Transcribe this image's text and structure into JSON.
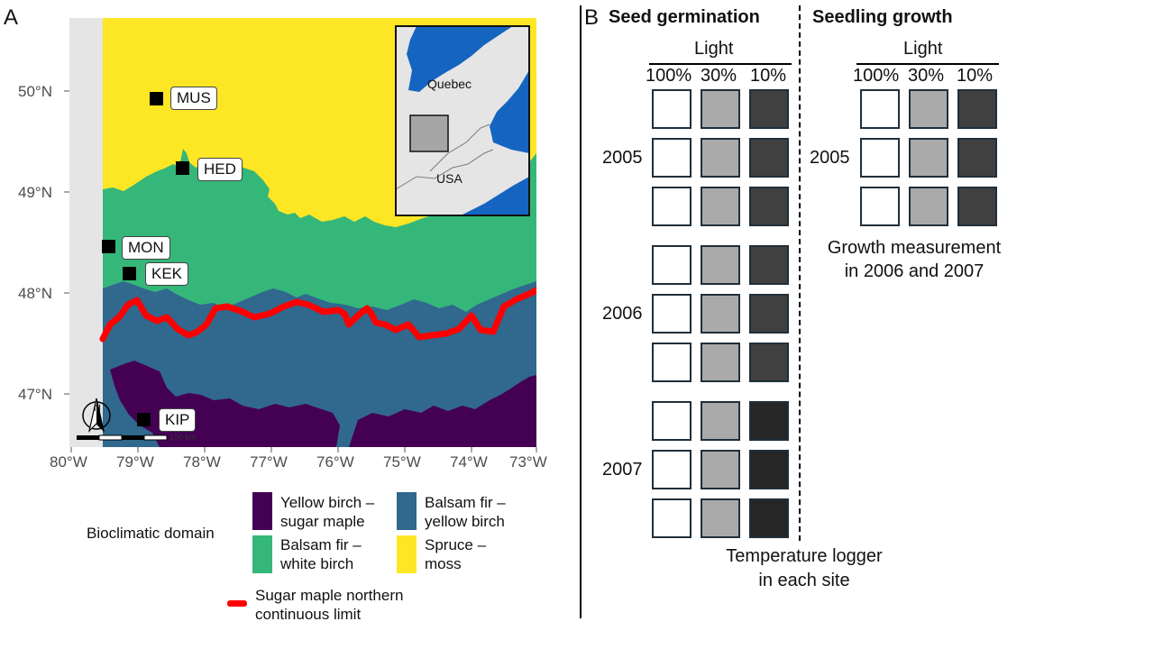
{
  "panel_a": {
    "letter": "A",
    "lat_labels": [
      "50°N",
      "49°N",
      "48°N",
      "47°N"
    ],
    "lon_labels": [
      "80°W",
      "79°W",
      "78°W",
      "77°W",
      "76°W",
      "75°W",
      "74°W",
      "73°W"
    ],
    "sites": [
      "MUS",
      "HED",
      "MON",
      "KEK",
      "KIP"
    ],
    "inset": {
      "region_label": "Quebec",
      "country_label": "USA"
    },
    "north_label": "N",
    "scale_label": "100 km",
    "legend": {
      "title": "Bioclimatic domain",
      "domains": [
        {
          "line1": "Yellow birch –",
          "line2": "sugar maple",
          "color": "#440154"
        },
        {
          "line1": "Balsam fir –",
          "line2": "yellow birch",
          "color": "#31688e"
        },
        {
          "line1": "Balsam fir –",
          "line2": "white birch",
          "color": "#35b779"
        },
        {
          "line1": "Spruce –",
          "line2": "moss",
          "color": "#fde725"
        }
      ],
      "limit_line1": "Sugar maple northern",
      "limit_line2": "continuous limit",
      "limit_color": "#ff0000"
    }
  },
  "panel_b": {
    "letter": "B",
    "germination_title": "Seed germination",
    "growth_title": "Seedling growth",
    "light_label": "Light",
    "light_levels": [
      "100%",
      "30%",
      "10%"
    ],
    "years": [
      "2005",
      "2006",
      "2007"
    ],
    "growth_year": "2005",
    "growth_note_line1": "Growth measurement",
    "growth_note_line2": "in 2006 and 2007",
    "logger_line1": "Temperature logger",
    "logger_line2": "in each site"
  }
}
